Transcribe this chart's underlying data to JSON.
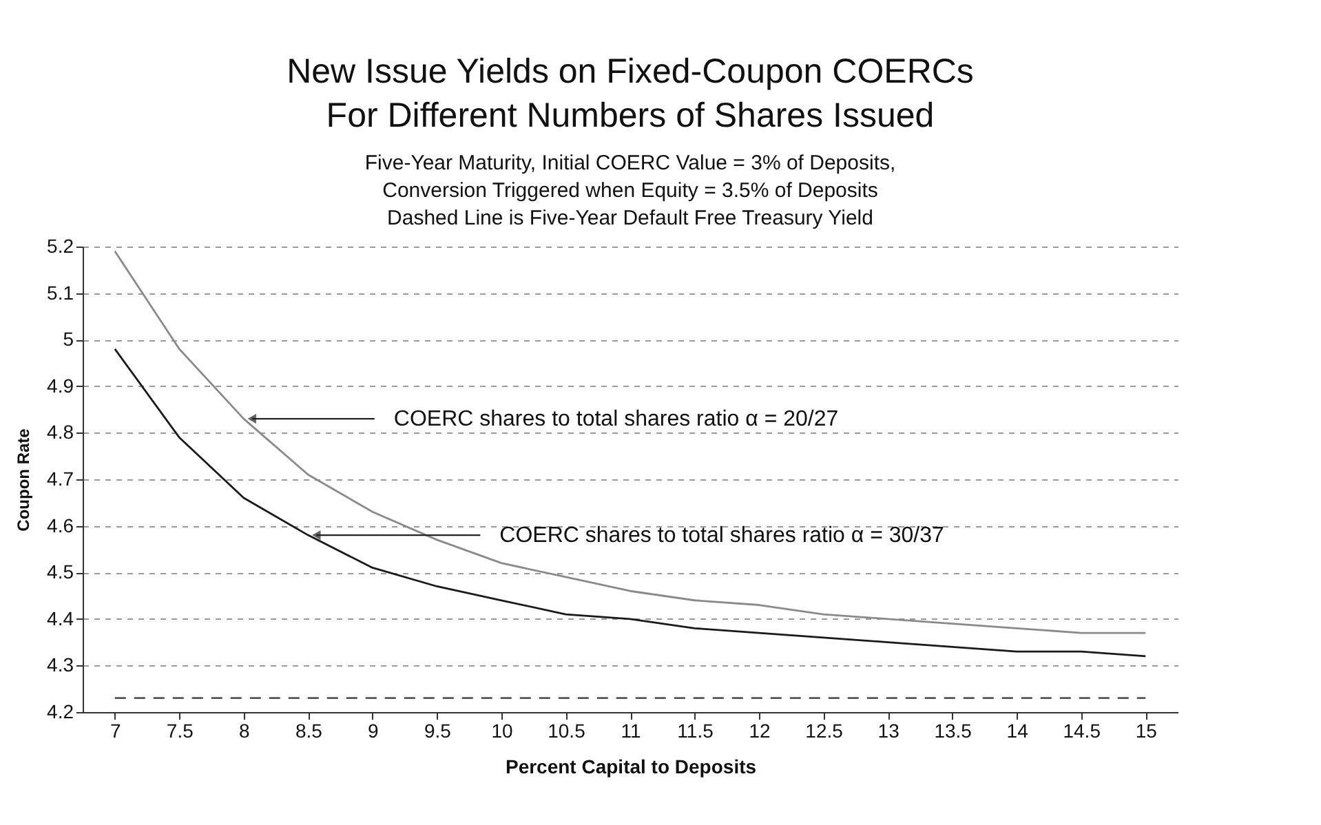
{
  "chart_data": {
    "type": "line",
    "title": "New Issue Yields on Fixed-Coupon COERCs\nFor Different Numbers of Shares Issued",
    "subtitle": "Five-Year Maturity, Initial COERC Value = 3% of Deposits,\nConversion Triggered when Equity = 3.5% of Deposits\nDashed Line is Five-Year Default Free Treasury Yield",
    "xlabel": "Percent Capital to Deposits",
    "ylabel": "Coupon Rate",
    "categories": [
      "7",
      "7.5",
      "8",
      "8.5",
      "9",
      "9.5",
      "10",
      "10.5",
      "11",
      "11.5",
      "12",
      "12.5",
      "13",
      "13.5",
      "14",
      "14.5",
      "15"
    ],
    "series": [
      {
        "color": "#8a8a8a",
        "line_style": "solid",
        "values": [
          5.19,
          4.98,
          4.83,
          4.71,
          4.63,
          4.57,
          4.52,
          4.49,
          4.46,
          4.44,
          4.43,
          4.41,
          4.4,
          4.39,
          4.38,
          4.37,
          4.37
        ]
      },
      {
        "color": "#1a1a1a",
        "line_style": "solid",
        "values": [
          4.98,
          4.79,
          4.66,
          4.58,
          4.51,
          4.47,
          4.44,
          4.41,
          4.4,
          4.38,
          4.37,
          4.36,
          4.35,
          4.34,
          4.33,
          4.33,
          4.32
        ]
      },
      {
        "color": "#555555",
        "line_style": "dashed",
        "values": [
          4.23,
          4.23,
          4.23,
          4.23,
          4.23,
          4.23,
          4.23,
          4.23,
          4.23,
          4.23,
          4.23,
          4.23,
          4.23,
          4.23,
          4.23,
          4.23,
          4.23
        ]
      }
    ],
    "annotations": [
      {
        "text": "COERC shares to total shares ratio α = 20/27",
        "x": "8",
        "y": 4.83
      },
      {
        "text": "COERC shares to total shares ratio α = 30/37",
        "x": "8.5",
        "y": 4.58
      }
    ],
    "ylim": [
      4.2,
      5.2
    ],
    "yticks": [
      4.2,
      4.3,
      4.4,
      4.5,
      4.6,
      4.7,
      4.8,
      4.9,
      5,
      5.1,
      5.2
    ],
    "grid": "y",
    "marker": "none"
  }
}
